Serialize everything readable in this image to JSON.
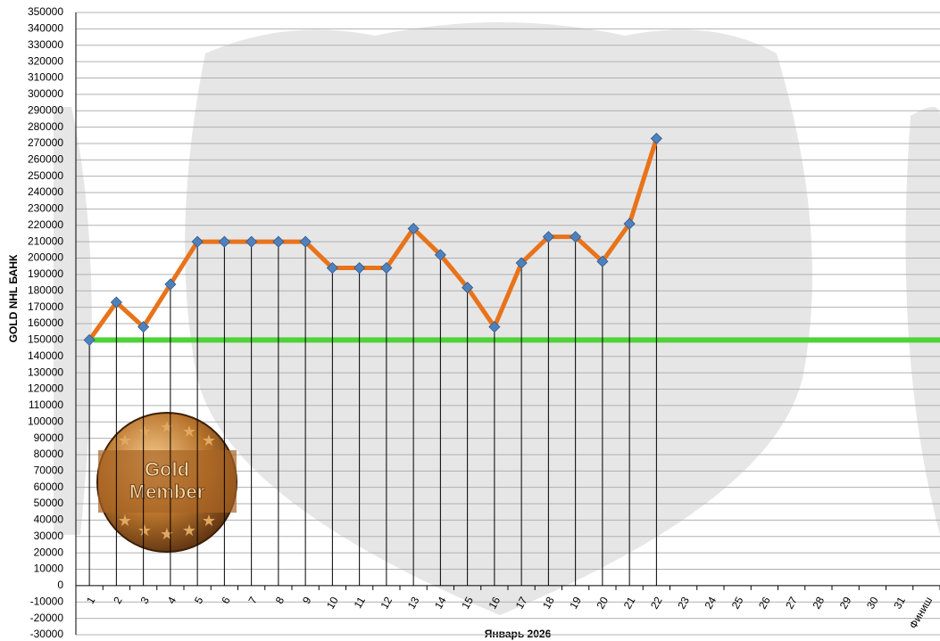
{
  "chart_data": {
    "type": "line",
    "y_label": "GOLD NHL БАНК",
    "x_label": "Январь 2026",
    "categories": [
      "1",
      "2",
      "3",
      "4",
      "5",
      "6",
      "7",
      "8",
      "9",
      "10",
      "11",
      "12",
      "13",
      "14",
      "15",
      "16",
      "17",
      "18",
      "19",
      "20",
      "21",
      "22",
      "23",
      "24",
      "25",
      "26",
      "27",
      "28",
      "29",
      "30",
      "31",
      "Финиш"
    ],
    "series": [
      {
        "color": "#e8731a",
        "marker_color": "#4f81bd",
        "values": [
          150000,
          173000,
          158000,
          184000,
          210000,
          210000,
          210000,
          210000,
          210000,
          194000,
          194000,
          194000,
          218000,
          202000,
          182000,
          158000,
          197000,
          213000,
          213000,
          198000,
          221000,
          273000,
          null,
          null,
          null,
          null,
          null,
          null,
          null,
          null,
          null,
          null
        ]
      }
    ],
    "ylim": [
      -30000,
      350000
    ],
    "yticks": [
      -30000,
      -20000,
      -10000,
      0,
      10000,
      20000,
      30000,
      40000,
      50000,
      60000,
      70000,
      80000,
      90000,
      100000,
      110000,
      120000,
      130000,
      140000,
      150000,
      160000,
      170000,
      180000,
      190000,
      200000,
      210000,
      220000,
      230000,
      240000,
      250000,
      260000,
      270000,
      280000,
      290000,
      300000,
      310000,
      320000,
      330000,
      340000,
      350000
    ],
    "grid": true,
    "reference_line": {
      "value": 150000,
      "color": "#4fd23a"
    },
    "badge": [
      "Gold",
      "Member"
    ]
  }
}
